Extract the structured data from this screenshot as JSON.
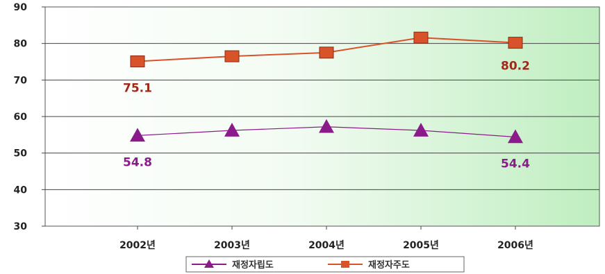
{
  "chart_data": {
    "type": "line",
    "title": "",
    "xlabel": "",
    "ylabel": "",
    "categories": [
      "2002년",
      "2003년",
      "2004년",
      "2005년",
      "2006년"
    ],
    "ylim": [
      30,
      90
    ],
    "yticks": [
      30,
      40,
      50,
      60,
      70,
      80,
      90
    ],
    "grid": true,
    "legend_position": "bottom",
    "series": [
      {
        "name": "재정자립도",
        "values": [
          54.8,
          56.2,
          57.2,
          56.2,
          54.4
        ],
        "color": "#8b1a8b",
        "marker": "triangle",
        "data_labels": [
          {
            "index": 0,
            "text": "54.8"
          },
          {
            "index": 4,
            "text": "54.4"
          }
        ]
      },
      {
        "name": "재정자주도",
        "values": [
          75.1,
          76.5,
          77.5,
          81.6,
          80.2
        ],
        "color": "#d9532a",
        "marker": "square",
        "data_labels": [
          {
            "index": 0,
            "text": "75.1"
          },
          {
            "index": 4,
            "text": "80.2"
          }
        ]
      }
    ]
  }
}
